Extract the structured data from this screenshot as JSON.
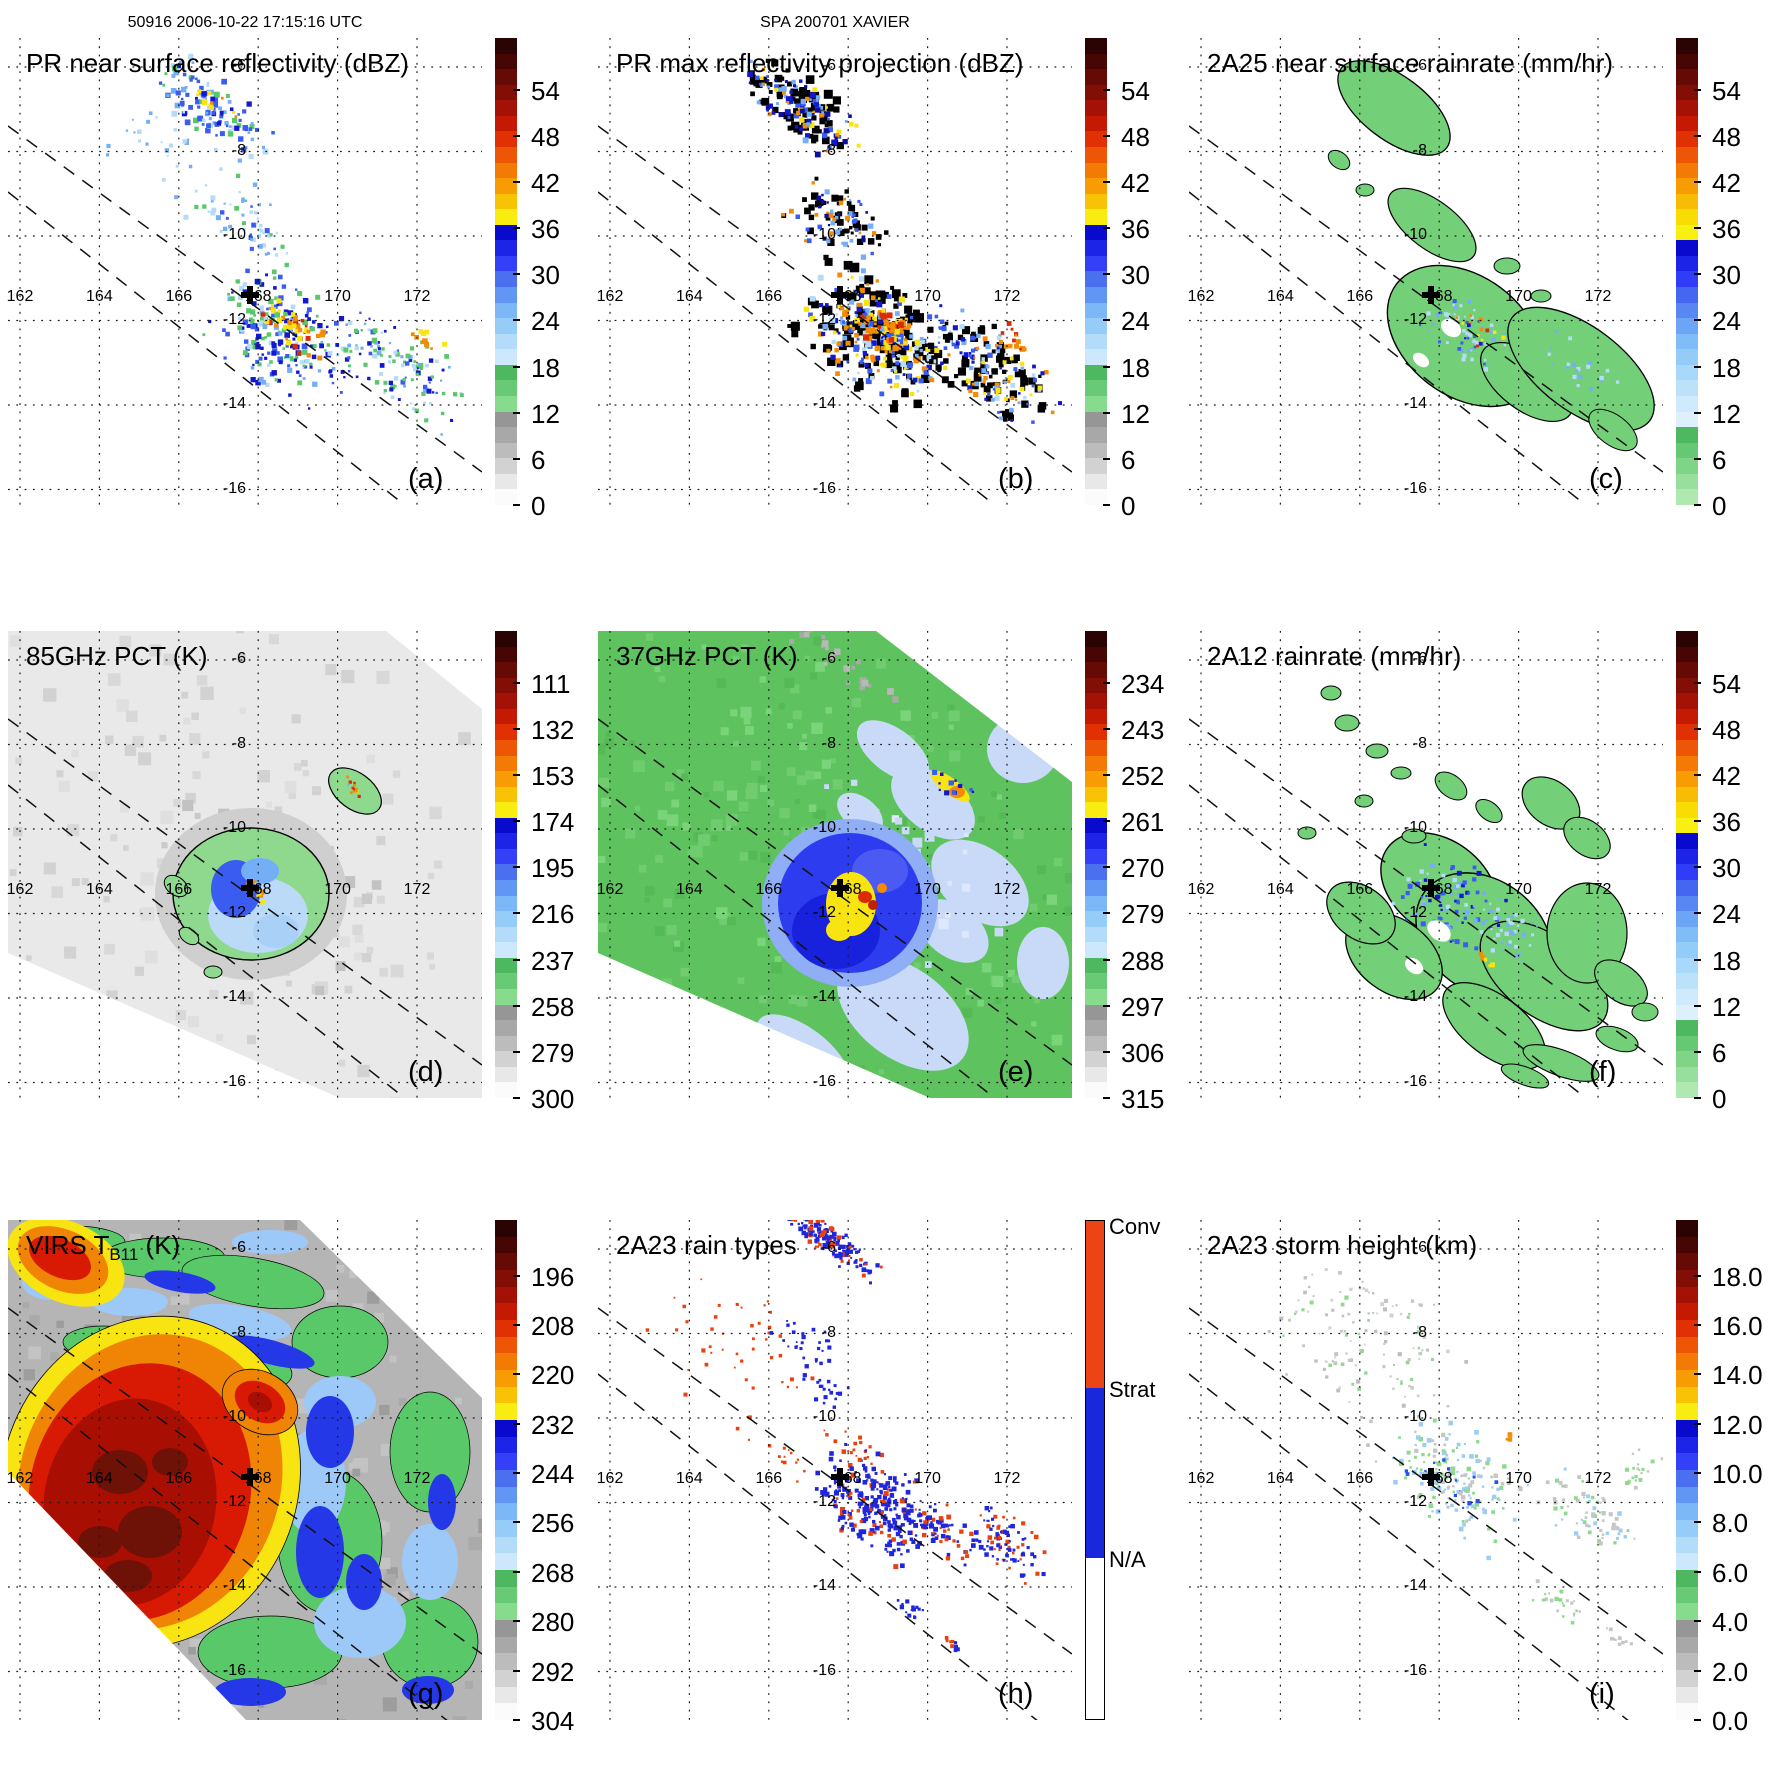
{
  "header": {
    "left": "50916 2006-10-22 17:15:16 UTC",
    "center": "SPA 200701 XAVIER"
  },
  "axes": {
    "lon_labels": [
      "162",
      "164",
      "166",
      "168",
      "170",
      "172"
    ],
    "lat_labels": [
      "-6",
      "-8",
      "-10",
      "-12",
      "-14",
      "-16"
    ],
    "lon_range": [
      161.7,
      173.6
    ],
    "lat_range": [
      -16.6,
      -5.6
    ],
    "grid": "dotted"
  },
  "storm_marker": {
    "symbol": "+",
    "lon": 167.8,
    "lat": -11.4
  },
  "colorbars": {
    "dbz_stops": [
      "#2A0302",
      "#470604",
      "#650A05",
      "#830E05",
      "#A31205",
      "#C41A04",
      "#E03004",
      "#EC5604",
      "#F37A04",
      "#F89C04",
      "#F8C304",
      "#F8EC10",
      "#0A0ACE",
      "#1C24E8",
      "#3440F8",
      "#4A70F0",
      "#6296F4",
      "#7CB8F8",
      "#96CCF8",
      "#B2DCFA",
      "#CDE8FC",
      "#4EB860",
      "#68CA74",
      "#86DC8C",
      "#969696",
      "#A8A8A8",
      "#BCBCBC",
      "#D2D2D2",
      "#E8E8E8",
      "#FBFBFB"
    ],
    "rain_stops": [
      "#2A0302",
      "#470604",
      "#650A05",
      "#830E05",
      "#A31205",
      "#C41A04",
      "#E03004",
      "#EC5604",
      "#F37A04",
      "#F89C04",
      "#F8BC04",
      "#F8DC04",
      "#F8F010",
      "#0A0ACE",
      "#1C24E8",
      "#303CF8",
      "#4466F0",
      "#5886F2",
      "#6CA4F6",
      "#80BCF8",
      "#94CCF8",
      "#A8D8FA",
      "#BCE2FA",
      "#CEEAFC",
      "#DEF0FD",
      "#4EB860",
      "#66C872",
      "#80D488",
      "#98DE9C",
      "#B0E8B2"
    ],
    "raintype": {
      "labels": [
        "Conv",
        "Strat",
        "N/A"
      ],
      "colors": [
        "#EC4414",
        "#1A28DC",
        "#FFFFFF"
      ]
    }
  },
  "chart_data": {
    "type": "heatmap",
    "description": "3x3 multi-panel satellite overpass maps of tropical cyclone XAVIER",
    "panels": [
      {
        "id": "a",
        "letter": "(a)",
        "title": "PR near surface reflectivity (dBZ)",
        "units": "dBZ",
        "colorbar": "dbz",
        "ticks": [
          "54",
          "48",
          "42",
          "36",
          "30",
          "24",
          "18",
          "12",
          "6",
          "0"
        ]
      },
      {
        "id": "b",
        "letter": "(b)",
        "title": "PR max reflectivity projection (dBZ)",
        "units": "dBZ",
        "colorbar": "dbz",
        "ticks": [
          "54",
          "48",
          "42",
          "36",
          "30",
          "24",
          "18",
          "12",
          "6",
          "0"
        ]
      },
      {
        "id": "c",
        "letter": "(c)",
        "title": "2A25 near surface rainrate (mm/hr)",
        "units": "mm/hr",
        "colorbar": "rain",
        "ticks": [
          "54",
          "48",
          "42",
          "36",
          "30",
          "24",
          "18",
          "12",
          "6",
          "0"
        ]
      },
      {
        "id": "d",
        "letter": "(d)",
        "title": "85GHz PCT (K)",
        "units": "K",
        "colorbar": "dbz",
        "ticks": [
          "111",
          "132",
          "153",
          "174",
          "195",
          "216",
          "237",
          "258",
          "279",
          "300"
        ]
      },
      {
        "id": "e",
        "letter": "(e)",
        "title": "37GHz PCT (K)",
        "units": "K",
        "colorbar": "dbz",
        "ticks": [
          "234",
          "243",
          "252",
          "261",
          "270",
          "279",
          "288",
          "297",
          "306",
          "315"
        ]
      },
      {
        "id": "f",
        "letter": "(f)",
        "title": "2A12 rainrate (mm/hr)",
        "units": "mm/hr",
        "colorbar": "rain",
        "ticks": [
          "54",
          "48",
          "42",
          "36",
          "30",
          "24",
          "18",
          "12",
          "6",
          "0"
        ]
      },
      {
        "id": "g",
        "letter": "(g)",
        "title": "VIRS T",
        "title_sub": "B11",
        "title_end": " (K)",
        "units": "K",
        "colorbar": "dbz",
        "ticks": [
          "196",
          "208",
          "220",
          "232",
          "244",
          "256",
          "268",
          "280",
          "292",
          "304"
        ]
      },
      {
        "id": "h",
        "letter": "(h)",
        "title": "2A23 rain types",
        "units": "category",
        "colorbar": "raintype",
        "ticks": []
      },
      {
        "id": "i",
        "letter": "(i)",
        "title": "2A23 storm height (km)",
        "units": "km",
        "colorbar": "dbz",
        "ticks": [
          "18.0",
          "16.0",
          "14.0",
          "12.0",
          "10.0",
          "8.0",
          "6.0",
          "4.0",
          "2.0",
          "0.0"
        ]
      }
    ]
  }
}
